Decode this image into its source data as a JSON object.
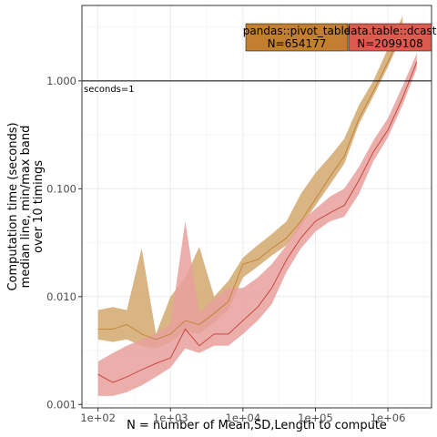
{
  "chart_data": {
    "type": "line",
    "title": "",
    "xlabel": "N = number of Mean,SD,Length to compute",
    "ylabel_lines": [
      "Computation time (seconds)",
      "median line, min/max band",
      "over 10 timings"
    ],
    "x_scale": "log10",
    "y_scale": "log10",
    "xlim": [
      60,
      4000000
    ],
    "ylim": [
      0.00093,
      5.0
    ],
    "grid": true,
    "legend": "none",
    "x_ticks": [
      {
        "value": 100,
        "label": "1e+02"
      },
      {
        "value": 1000,
        "label": "1e+03"
      },
      {
        "value": 10000,
        "label": "1e+04"
      },
      {
        "value": 100000,
        "label": "1e+05"
      },
      {
        "value": 1000000,
        "label": "1e+06"
      }
    ],
    "y_ticks": [
      {
        "value": 0.001,
        "label": "0.001"
      },
      {
        "value": 0.01,
        "label": "0.010"
      },
      {
        "value": 0.1,
        "label": "0.100"
      },
      {
        "value": 1,
        "label": "1.000"
      }
    ],
    "reference_line": {
      "y": 1,
      "label": "seconds=1"
    },
    "series": [
      {
        "name": "pandas::pivot_table",
        "color": "#c27f2f",
        "band_color": "#d2a86e",
        "x": [
          100,
          160,
          250,
          400,
          630,
          1000,
          1600,
          2500,
          4000,
          6300,
          10000,
          16000,
          25000,
          40000,
          63000,
          100000,
          160000,
          250000,
          400000,
          630000,
          1000000,
          1600000
        ],
        "median": [
          0.005,
          0.005,
          0.0055,
          0.0045,
          0.004,
          0.0045,
          0.006,
          0.0055,
          0.007,
          0.009,
          0.02,
          0.022,
          0.028,
          0.035,
          0.05,
          0.08,
          0.13,
          0.2,
          0.45,
          0.8,
          1.5,
          3.0
        ],
        "min": [
          0.004,
          0.0038,
          0.004,
          0.0035,
          0.0033,
          0.0038,
          0.0048,
          0.0045,
          0.0058,
          0.0075,
          0.015,
          0.019,
          0.024,
          0.03,
          0.045,
          0.07,
          0.11,
          0.17,
          0.4,
          0.72,
          1.35,
          2.7
        ],
        "max": [
          0.0075,
          0.008,
          0.0075,
          0.028,
          0.0045,
          0.01,
          0.015,
          0.029,
          0.01,
          0.014,
          0.023,
          0.03,
          0.038,
          0.05,
          0.09,
          0.14,
          0.2,
          0.29,
          0.6,
          1.0,
          2.0,
          4.0
        ]
      },
      {
        "name": "data.table::dcast",
        "color": "#c63b35",
        "band_color": "#e8a09c",
        "x": [
          100,
          160,
          250,
          400,
          630,
          1000,
          1600,
          2500,
          4000,
          6300,
          10000,
          16000,
          25000,
          40000,
          63000,
          100000,
          160000,
          250000,
          400000,
          630000,
          1000000,
          1600000,
          2500000
        ],
        "median": [
          0.0019,
          0.0016,
          0.0018,
          0.0021,
          0.0024,
          0.0027,
          0.005,
          0.0035,
          0.0045,
          0.0045,
          0.006,
          0.008,
          0.012,
          0.022,
          0.035,
          0.05,
          0.06,
          0.07,
          0.12,
          0.22,
          0.35,
          0.7,
          1.5
        ],
        "min": [
          0.0012,
          0.0012,
          0.0013,
          0.0015,
          0.0018,
          0.0022,
          0.0033,
          0.003,
          0.0035,
          0.0035,
          0.0045,
          0.006,
          0.0085,
          0.017,
          0.028,
          0.04,
          0.05,
          0.055,
          0.09,
          0.18,
          0.3,
          0.6,
          1.3
        ],
        "max": [
          0.0025,
          0.003,
          0.0035,
          0.004,
          0.0045,
          0.0055,
          0.05,
          0.007,
          0.0095,
          0.012,
          0.012,
          0.015,
          0.02,
          0.03,
          0.05,
          0.065,
          0.085,
          0.1,
          0.16,
          0.28,
          0.45,
          0.9,
          1.8
        ]
      }
    ],
    "annotations": [
      {
        "series": "pandas::pivot_table",
        "line1": "pandas::pivot_table",
        "line2": "N=654177",
        "fill": "#c27f2f"
      },
      {
        "series": "data.table::dcast",
        "line1": "data.table::dcast",
        "line2": "N=2099108",
        "fill": "#dc5b4f"
      }
    ]
  }
}
